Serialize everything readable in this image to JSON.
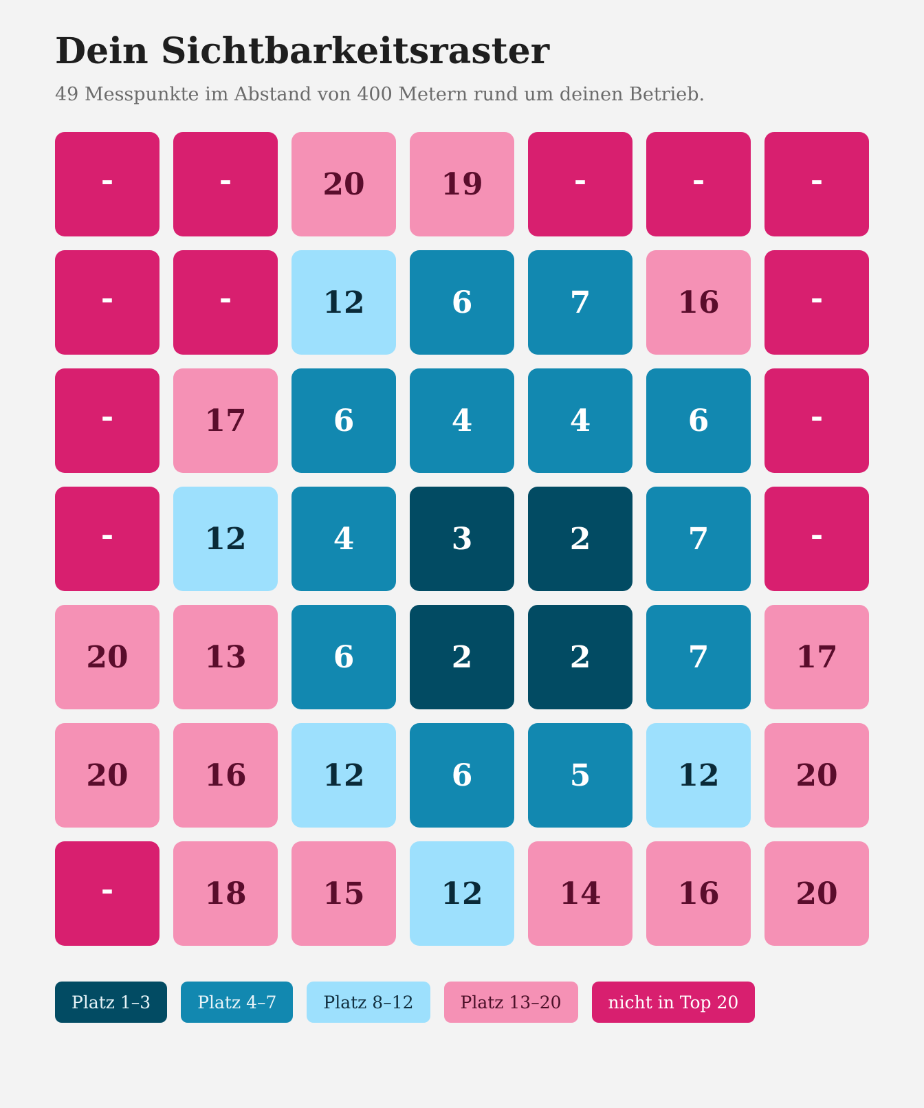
{
  "header": {
    "title": "Dein Sichtbarkeitsraster",
    "subtitle": "49 Messpunkte im Abstand von 400 Metern rund um deinen Betrieb."
  },
  "grid": {
    "rows": [
      [
        "-",
        "-",
        "20",
        "19",
        "-",
        "-",
        "-"
      ],
      [
        "-",
        "-",
        "12",
        "6",
        "7",
        "16",
        "-"
      ],
      [
        "-",
        "17",
        "6",
        "4",
        "4",
        "6",
        "-"
      ],
      [
        "-",
        "12",
        "4",
        "3",
        "2",
        "7",
        "-"
      ],
      [
        "20",
        "13",
        "6",
        "2",
        "2",
        "7",
        "17"
      ],
      [
        "20",
        "16",
        "12",
        "6",
        "5",
        "12",
        "20"
      ],
      [
        "-",
        "18",
        "15",
        "12",
        "14",
        "16",
        "20"
      ]
    ]
  },
  "legend": [
    {
      "label": "Platz 1–3",
      "color": "#024b63"
    },
    {
      "label": "Platz 4–7",
      "color": "#1288b0"
    },
    {
      "label": "Platz 8–12",
      "color": "#9de0fd"
    },
    {
      "label": "Platz 13–20",
      "color": "#f591b5"
    },
    {
      "label": "nicht in Top 20",
      "color": "#d81f6f"
    }
  ]
}
